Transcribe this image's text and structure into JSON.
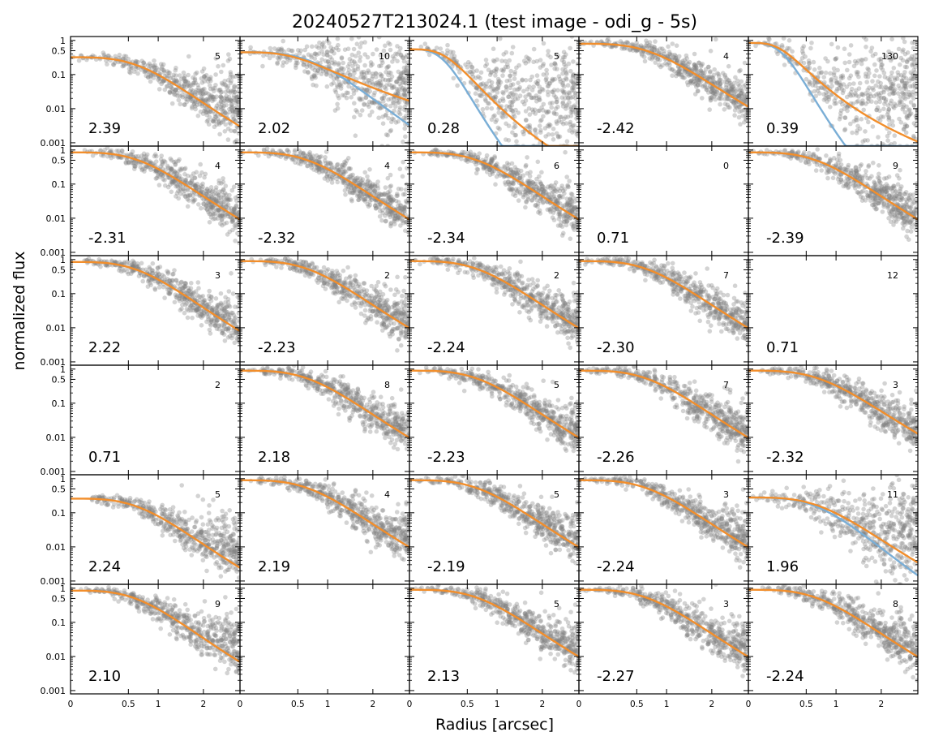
{
  "title": "20240527T213024.1 (test image - odi_g - 5s)",
  "chart_data": {
    "type": "scatter",
    "title": "20240527T213024.1 (test image - odi_g - 5s)",
    "xlabel": "Radius [arcsec]",
    "ylabel": "normalized flux",
    "y_scale": "log",
    "x_scale": "nonlinear (sqrt-like)",
    "xlim": [
      0,
      3
    ],
    "ylim": [
      0.0008,
      1.3
    ],
    "grid": false,
    "x_ticks": [
      {
        "value": 0,
        "label": "0"
      },
      {
        "value": 0.5,
        "label": "0.5"
      },
      {
        "value": 1,
        "label": "1"
      },
      {
        "value": 2,
        "label": "2"
      }
    ],
    "y_ticks": [
      {
        "value": 1,
        "label": "1"
      },
      {
        "value": 0.5,
        "label": "0.5"
      },
      {
        "value": 0.1,
        "label": "0.1"
      },
      {
        "value": 0.01,
        "label": "0.01"
      },
      {
        "value": 0.001,
        "label": "0.001"
      }
    ],
    "series_colors": {
      "points": "#808080",
      "fit": "#f28e2b",
      "model": "#7aaed6"
    },
    "panels": [
      [
        {
          "value": "2.39",
          "count": "5",
          "peak": 0.32,
          "fwhm": 1.45,
          "beta": 2.5,
          "scatter": 0.55,
          "floor": 0.012
        },
        {
          "value": "2.02",
          "count": "10",
          "peak": 0.45,
          "fwhm": 1.4,
          "beta": 1.2,
          "scatter": 1.1,
          "floor": 0.03,
          "model": true,
          "model_fwhm": 1.5,
          "model_beta": 3.0
        },
        {
          "value": "0.28",
          "count": "5",
          "peak": 0.55,
          "fwhm": 0.55,
          "beta": 2.0,
          "scatter": 1.3,
          "floor": 0.02,
          "model": true,
          "model_fwhm": 0.4,
          "model_beta": 3.0
        },
        {
          "value": "-2.42",
          "count": "4",
          "peak": 0.8,
          "fwhm": 1.6,
          "beta": 2.5,
          "scatter": 0.5,
          "floor": 0.01
        },
        {
          "value": "0.39",
          "count": "130",
          "peak": 0.85,
          "fwhm": 0.5,
          "beta": 1.5,
          "scatter": 1.3,
          "floor": 0.03,
          "model": true,
          "model_fwhm": 0.4,
          "model_beta": 3.0
        }
      ],
      [
        {
          "value": "-2.31",
          "count": "4",
          "peak": 0.85,
          "fwhm": 1.5,
          "beta": 2.5,
          "scatter": 0.5,
          "floor": 0.008
        },
        {
          "value": "-2.32",
          "count": "4",
          "peak": 0.85,
          "fwhm": 1.5,
          "beta": 2.5,
          "scatter": 0.5,
          "floor": 0.01
        },
        {
          "value": "-2.34",
          "count": "6",
          "peak": 0.85,
          "fwhm": 1.5,
          "beta": 2.5,
          "scatter": 0.5,
          "floor": 0.01
        },
        {
          "value": "0.71",
          "count": "0",
          "empty": true
        },
        {
          "value": "-2.39",
          "count": "9",
          "peak": 0.85,
          "fwhm": 1.5,
          "beta": 2.5,
          "scatter": 0.5,
          "floor": 0.01
        }
      ],
      [
        {
          "value": "2.22",
          "count": "3",
          "peak": 0.85,
          "fwhm": 1.45,
          "beta": 2.5,
          "scatter": 0.5,
          "floor": 0.008
        },
        {
          "value": "-2.23",
          "count": "2",
          "peak": 0.9,
          "fwhm": 1.5,
          "beta": 2.5,
          "scatter": 0.5,
          "floor": 0.01
        },
        {
          "value": "-2.24",
          "count": "2",
          "peak": 0.9,
          "fwhm": 1.5,
          "beta": 2.5,
          "scatter": 0.5,
          "floor": 0.01
        },
        {
          "value": "-2.30",
          "count": "7",
          "peak": 0.9,
          "fwhm": 1.5,
          "beta": 2.5,
          "scatter": 0.5,
          "floor": 0.01
        },
        {
          "value": "0.71",
          "count": "12",
          "empty": true
        }
      ],
      [
        {
          "value": "0.71",
          "count": "2",
          "empty": true
        },
        {
          "value": "2.18",
          "count": "8",
          "peak": 0.9,
          "fwhm": 1.5,
          "beta": 2.5,
          "scatter": 0.5,
          "floor": 0.012
        },
        {
          "value": "-2.23",
          "count": "5",
          "peak": 0.9,
          "fwhm": 1.5,
          "beta": 2.5,
          "scatter": 0.5,
          "floor": 0.01
        },
        {
          "value": "-2.26",
          "count": "7",
          "peak": 0.9,
          "fwhm": 1.5,
          "beta": 2.5,
          "scatter": 0.5,
          "floor": 0.012
        },
        {
          "value": "-2.32",
          "count": "3",
          "peak": 0.9,
          "fwhm": 1.6,
          "beta": 2.5,
          "scatter": 0.5,
          "floor": 0.012
        }
      ],
      [
        {
          "value": "2.24",
          "count": "5",
          "peak": 0.26,
          "fwhm": 1.45,
          "beta": 2.5,
          "scatter": 0.5,
          "floor": 0.008
        },
        {
          "value": "2.19",
          "count": "4",
          "peak": 0.9,
          "fwhm": 1.5,
          "beta": 2.5,
          "scatter": 0.5,
          "floor": 0.012
        },
        {
          "value": "-2.19",
          "count": "5",
          "peak": 0.9,
          "fwhm": 1.5,
          "beta": 2.5,
          "scatter": 0.5,
          "floor": 0.012
        },
        {
          "value": "-2.24",
          "count": "3",
          "peak": 0.9,
          "fwhm": 1.5,
          "beta": 2.5,
          "scatter": 0.5,
          "floor": 0.012
        },
        {
          "value": "1.96",
          "count": "11",
          "peak": 0.28,
          "fwhm": 1.55,
          "beta": 2.5,
          "scatter": 1.0,
          "floor": 0.02,
          "model": true,
          "model_fwhm": 1.4,
          "model_beta": 3.0
        }
      ],
      [
        {
          "value": "2.10",
          "count": "9",
          "peak": 0.85,
          "fwhm": 1.4,
          "beta": 2.5,
          "scatter": 0.5,
          "floor": 0.02
        },
        {
          "value": "",
          "count": "",
          "empty": true
        },
        {
          "value": "2.13",
          "count": "5",
          "peak": 0.9,
          "fwhm": 1.5,
          "beta": 2.5,
          "scatter": 0.5,
          "floor": 0.015
        },
        {
          "value": "-2.27",
          "count": "3",
          "peak": 0.9,
          "fwhm": 1.5,
          "beta": 2.5,
          "scatter": 0.5,
          "floor": 0.012
        },
        {
          "value": "-2.24",
          "count": "8",
          "peak": 0.9,
          "fwhm": 1.5,
          "beta": 2.5,
          "scatter": 0.5,
          "floor": 0.015
        }
      ]
    ]
  }
}
